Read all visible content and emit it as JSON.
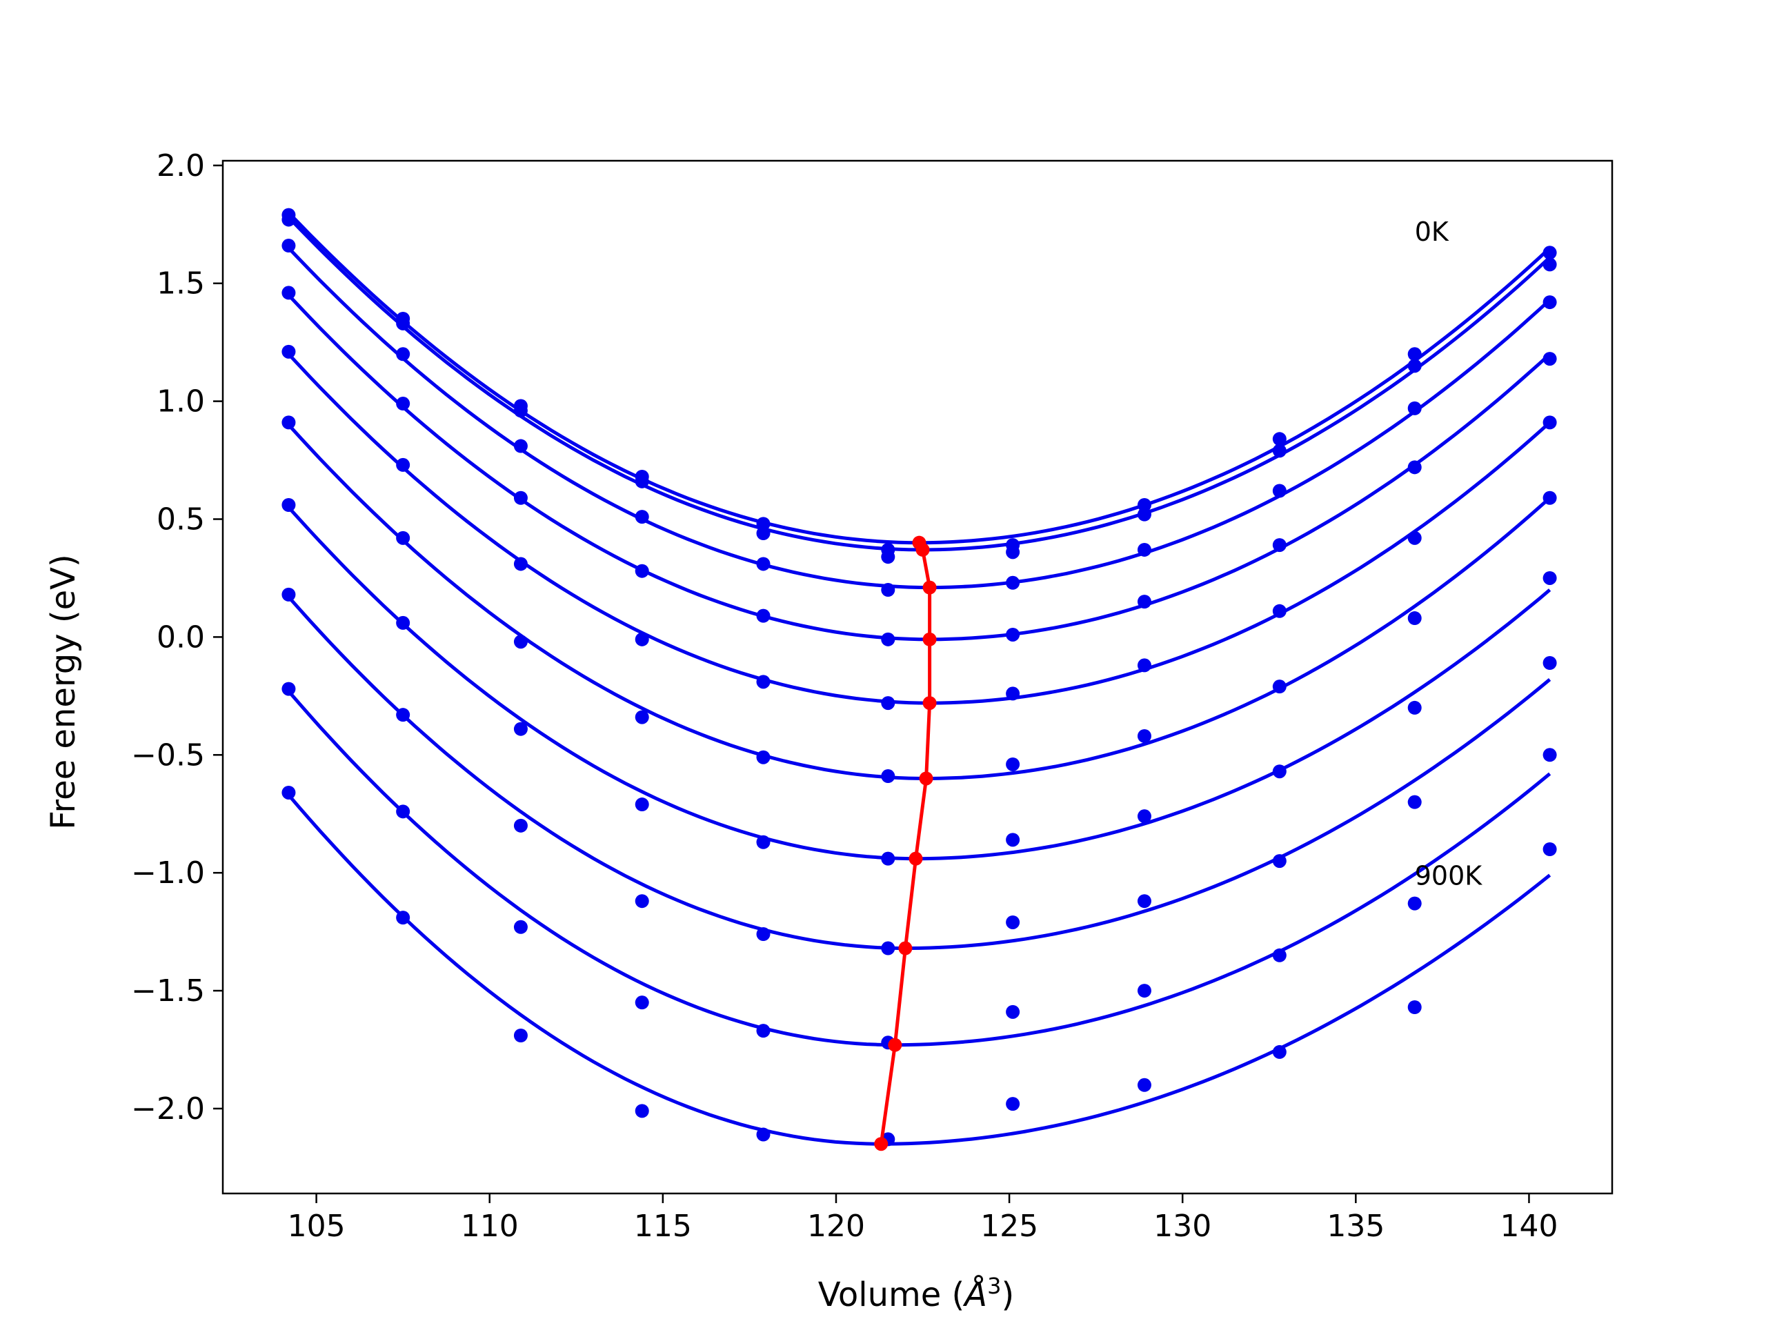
{
  "chart_data": {
    "type": "line",
    "title": "",
    "xlabel_prefix": "Volume (",
    "xlabel_symbol": "Å",
    "xlabel_exp": "3",
    "xlabel_suffix": ")",
    "ylabel": "Free energy (eV)",
    "xlim": [
      102.3,
      142.4
    ],
    "ylim": [
      -2.36,
      2.02
    ],
    "xticks": [
      105,
      110,
      115,
      120,
      125,
      130,
      135,
      140
    ],
    "xtick_labels": [
      "105",
      "110",
      "115",
      "120",
      "125",
      "130",
      "135",
      "140"
    ],
    "yticks": [
      -2.0,
      -1.5,
      -1.0,
      -0.5,
      0.0,
      0.5,
      1.0,
      1.5,
      2.0
    ],
    "ytick_labels": [
      "−2.0",
      "−1.5",
      "−1.0",
      "−0.5",
      "0.0",
      "0.5",
      "1.0",
      "1.5",
      "2.0"
    ],
    "grid": false,
    "legend": "none",
    "annotations": [
      {
        "text": "0K",
        "x": 136.7,
        "y": 1.68
      },
      {
        "text": "900K",
        "x": 136.7,
        "y": -1.05
      }
    ],
    "volumes": [
      104.2,
      107.5,
      110.9,
      114.4,
      117.9,
      121.5,
      125.1,
      128.9,
      132.8,
      136.7,
      140.6
    ],
    "series": [
      {
        "values": [
          1.79,
          1.35,
          0.98,
          0.68,
          0.48,
          0.37,
          0.39,
          0.56,
          0.84,
          1.2,
          1.63
        ],
        "fit": {
          "v0": 122.4,
          "fmin": 0.4,
          "left": 1.8,
          "right": 1.65
        }
      },
      {
        "values": [
          1.77,
          1.33,
          0.96,
          0.66,
          0.44,
          0.34,
          0.36,
          0.52,
          0.79,
          1.15,
          1.58
        ],
        "fit": {
          "v0": 122.5,
          "fmin": 0.37,
          "left": 1.78,
          "right": 1.61
        }
      },
      {
        "values": [
          1.66,
          1.2,
          0.81,
          0.51,
          0.31,
          0.2,
          0.23,
          0.37,
          0.62,
          0.97,
          1.42
        ],
        "fit": {
          "v0": 122.7,
          "fmin": 0.21,
          "left": 1.65,
          "right": 1.43
        }
      },
      {
        "values": [
          1.46,
          0.99,
          0.59,
          0.28,
          0.09,
          -0.01,
          0.01,
          0.15,
          0.39,
          0.72,
          1.18
        ],
        "fit": {
          "v0": 122.7,
          "fmin": -0.01,
          "left": 1.45,
          "right": 1.2
        }
      },
      {
        "values": [
          1.21,
          0.73,
          0.31,
          -0.01,
          -0.19,
          -0.28,
          -0.24,
          -0.12,
          0.11,
          0.42,
          0.91
        ],
        "fit": {
          "v0": 122.7,
          "fmin": -0.28,
          "left": 1.2,
          "right": 0.91
        }
      },
      {
        "values": [
          0.91,
          0.42,
          -0.02,
          -0.34,
          -0.51,
          -0.59,
          -0.54,
          -0.42,
          -0.21,
          0.08,
          0.59
        ],
        "fit": {
          "v0": 122.6,
          "fmin": -0.6,
          "left": 0.9,
          "right": 0.59
        }
      },
      {
        "values": [
          0.56,
          0.06,
          -0.39,
          -0.71,
          -0.87,
          -0.94,
          -0.86,
          -0.76,
          -0.57,
          -0.3,
          0.25
        ],
        "fit": {
          "v0": 122.3,
          "fmin": -0.94,
          "left": 0.55,
          "right": 0.2
        }
      },
      {
        "values": [
          0.18,
          -0.33,
          -0.8,
          -1.12,
          -1.26,
          -1.32,
          -1.21,
          -1.12,
          -0.95,
          -0.7,
          -0.11
        ],
        "fit": {
          "v0": 122.0,
          "fmin": -1.32,
          "left": 0.17,
          "right": -0.18
        }
      },
      {
        "values": [
          -0.22,
          -0.74,
          -1.23,
          -1.55,
          -1.67,
          -1.72,
          -1.59,
          -1.5,
          -1.35,
          -1.13,
          -0.5
        ],
        "fit": {
          "v0": 121.7,
          "fmin": -1.73,
          "left": -0.23,
          "right": -0.58
        }
      },
      {
        "values": [
          -0.66,
          -1.19,
          -1.69,
          -2.01,
          -2.11,
          -2.13,
          -1.98,
          -1.9,
          -1.76,
          -1.57,
          -0.9
        ],
        "fit": {
          "v0": 121.3,
          "fmin": -2.15,
          "left": -0.67,
          "right": -1.01
        }
      }
    ],
    "minima_line": {
      "x": [
        122.4,
        122.5,
        122.7,
        122.7,
        122.7,
        122.6,
        122.3,
        122.0,
        121.7,
        121.3
      ],
      "y": [
        0.4,
        0.37,
        0.21,
        -0.01,
        -0.28,
        -0.6,
        -0.94,
        -1.32,
        -1.73,
        -2.15
      ]
    },
    "colors": {
      "fit": "#0000ee",
      "points": "#0000ee",
      "minima": "#ff0000",
      "axes": "#000000"
    }
  }
}
